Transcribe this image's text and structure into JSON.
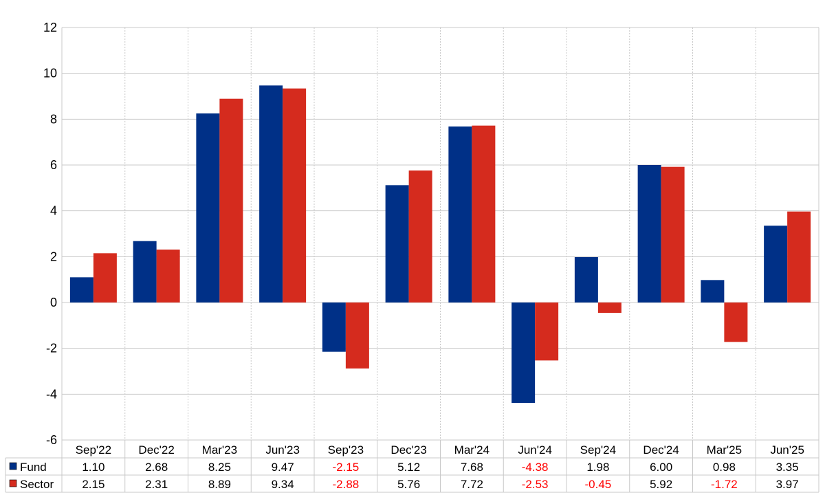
{
  "chart_data": {
    "type": "bar",
    "categories": [
      "Sep'22",
      "Dec'22",
      "Mar'23",
      "Jun'23",
      "Sep'23",
      "Dec'23",
      "Mar'24",
      "Jun'24",
      "Sep'24",
      "Dec'24",
      "Mar'25",
      "Jun'25"
    ],
    "series": [
      {
        "name": "Fund",
        "color": "#003087",
        "values": [
          1.1,
          2.68,
          8.25,
          9.47,
          -2.15,
          5.12,
          7.68,
          -4.38,
          1.98,
          6.0,
          0.98,
          3.35
        ],
        "labels": [
          "1.10",
          "2.68",
          "8.25",
          "9.47",
          "-2.15",
          "5.12",
          "7.68",
          "-4.38",
          "1.98",
          "6.00",
          "0.98",
          "3.35"
        ]
      },
      {
        "name": "Sector",
        "color": "#d52b1e",
        "values": [
          2.15,
          2.31,
          8.89,
          9.34,
          -2.88,
          5.76,
          7.72,
          -2.53,
          -0.45,
          5.92,
          -1.72,
          3.97
        ],
        "labels": [
          "2.15",
          "2.31",
          "8.89",
          "9.34",
          "-2.88",
          "5.76",
          "7.72",
          "-2.53",
          "-0.45",
          "5.92",
          "-1.72",
          "3.97"
        ]
      }
    ],
    "yticks": [
      "12",
      "10",
      "8",
      "6",
      "4",
      "2",
      "0",
      "-2",
      "-4",
      "-6"
    ],
    "ylim": [
      -6,
      12
    ],
    "grid": true,
    "legend": "table-below",
    "negative_label_color": "#ff0000"
  }
}
